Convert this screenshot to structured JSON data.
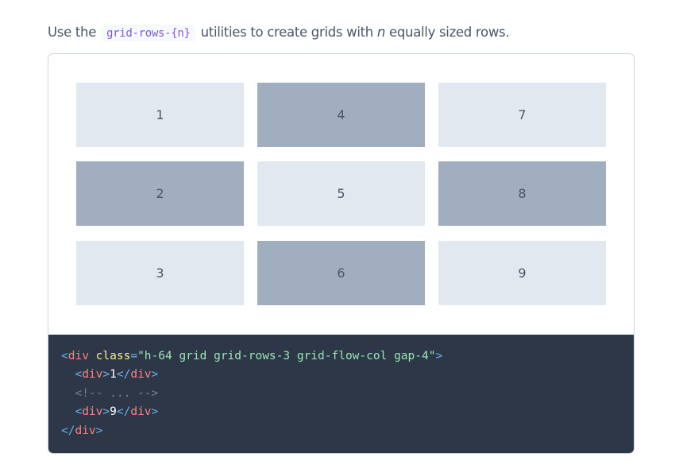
{
  "intro": {
    "before": "Use the ",
    "code": "grid-rows-{n}",
    "middle": " utilities to create grids with ",
    "em": "n",
    "after": " equally sized rows."
  },
  "cells": [
    "1",
    "2",
    "3",
    "4",
    "5",
    "6",
    "7",
    "8",
    "9"
  ],
  "colors": {
    "light": "#e2e8f0",
    "dark": "#a0aec0",
    "code_bg": "#2d3748"
  },
  "code": {
    "line1": {
      "open": "<",
      "tag": "div",
      "attr": " class",
      "eq": "=",
      "value": "\"h-64 grid grid-rows-3 grid-flow-col gap-4\"",
      "close": ">"
    },
    "line2": {
      "open": "<",
      "tag": "div",
      "close": ">",
      "text": "1",
      "end_open": "</",
      "end_tag": "div",
      "end_close": ">"
    },
    "line3": "<!-- ... -->",
    "line4": {
      "open": "<",
      "tag": "div",
      "close": ">",
      "text": "9",
      "end_open": "</",
      "end_tag": "div",
      "end_close": ">"
    },
    "line5": {
      "open": "</",
      "tag": "div",
      "close": ">"
    }
  }
}
